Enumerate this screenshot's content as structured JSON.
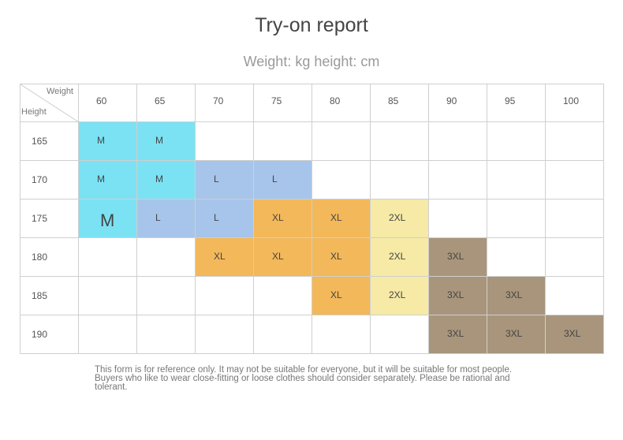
{
  "title": "Try-on report",
  "subtitle": "Weight: kg height: cm",
  "table": {
    "corner_weight": "Weight",
    "corner_height": "Height",
    "weights": [
      "60",
      "65",
      "70",
      "75",
      "80",
      "85",
      "90",
      "95",
      "100"
    ],
    "rows": [
      {
        "height": "165",
        "sizes": [
          "M",
          "M",
          "",
          "",
          "",
          "",
          "",
          "",
          ""
        ]
      },
      {
        "height": "170",
        "sizes": [
          "M",
          "M",
          "L",
          "L",
          "",
          "",
          "",
          "",
          ""
        ]
      },
      {
        "height": "175",
        "sizes": [
          "M",
          "L",
          "L",
          "XL",
          "XL",
          "2XL",
          "",
          "",
          ""
        ]
      },
      {
        "height": "180",
        "sizes": [
          "",
          "",
          "XL",
          "XL",
          "XL",
          "2XL",
          "3XL",
          "",
          ""
        ]
      },
      {
        "height": "185",
        "sizes": [
          "",
          "",
          "",
          "",
          "XL",
          "2XL",
          "3XL",
          "3XL",
          ""
        ]
      },
      {
        "height": "190",
        "sizes": [
          "",
          "",
          "",
          "",
          "",
          "",
          "3XL",
          "3XL",
          "3XL"
        ]
      }
    ],
    "size_colors": {
      "M": "#7be2f4",
      "L": "#a7c5ea",
      "XL": "#f3b85a",
      "2XL": "#f6eaa6",
      "3XL": "#a8957b"
    }
  },
  "note": "This form is for reference only. It may not be suitable for everyone, but it will be suitable for most people. Buyers who like to wear close-fitting or loose clothes should consider separately. Please be rational and tolerant."
}
